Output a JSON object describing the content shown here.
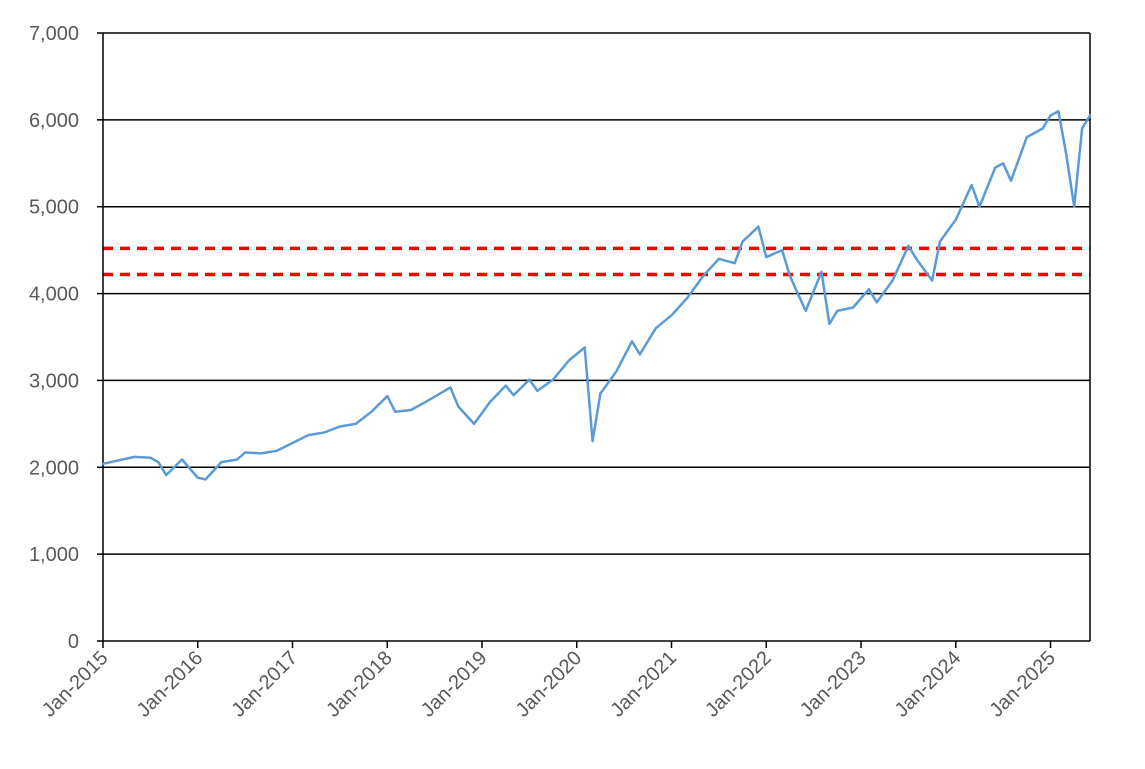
{
  "chart_data": {
    "type": "line",
    "title": "",
    "xlabel": "",
    "ylabel": "",
    "xlim": [
      "2015-01",
      "2025-06"
    ],
    "ylim": [
      0,
      7000
    ],
    "grid": "horizontal",
    "legend": "none",
    "y_ticks": [
      {
        "value": 0,
        "label": "0"
      },
      {
        "value": 1000,
        "label": "1,000"
      },
      {
        "value": 2000,
        "label": "2,000"
      },
      {
        "value": 3000,
        "label": "3,000"
      },
      {
        "value": 4000,
        "label": "4,000"
      },
      {
        "value": 5000,
        "label": "5,000"
      },
      {
        "value": 6000,
        "label": "6,000"
      },
      {
        "value": 7000,
        "label": "7,000"
      }
    ],
    "x_ticks": [
      {
        "value": "2015-01",
        "label": "Jan-2015"
      },
      {
        "value": "2016-01",
        "label": "Jan-2016"
      },
      {
        "value": "2017-01",
        "label": "Jan-2017"
      },
      {
        "value": "2018-01",
        "label": "Jan-2018"
      },
      {
        "value": "2019-01",
        "label": "Jan-2019"
      },
      {
        "value": "2020-01",
        "label": "Jan-2020"
      },
      {
        "value": "2021-01",
        "label": "Jan-2021"
      },
      {
        "value": "2022-01",
        "label": "Jan-2022"
      },
      {
        "value": "2023-01",
        "label": "Jan-2023"
      },
      {
        "value": "2024-01",
        "label": "Jan-2024"
      },
      {
        "value": "2025-01",
        "label": "Jan-2025"
      }
    ],
    "reference_lines": [
      {
        "y": 4520,
        "color": "#ff0000",
        "style": "dashed"
      },
      {
        "y": 4220,
        "color": "#ff0000",
        "style": "dashed"
      }
    ],
    "series": [
      {
        "color": "#5b9bd5",
        "x": [
          "2015-01",
          "2015-03",
          "2015-05",
          "2015-07",
          "2015-08",
          "2015-09",
          "2015-11",
          "2016-01",
          "2016-02",
          "2016-04",
          "2016-06",
          "2016-07",
          "2016-09",
          "2016-11",
          "2017-01",
          "2017-03",
          "2017-05",
          "2017-07",
          "2017-09",
          "2017-11",
          "2018-01",
          "2018-02",
          "2018-04",
          "2018-06",
          "2018-09",
          "2018-10",
          "2018-12",
          "2019-02",
          "2019-04",
          "2019-05",
          "2019-07",
          "2019-08",
          "2019-10",
          "2019-12",
          "2020-02",
          "2020-03",
          "2020-04",
          "2020-06",
          "2020-08",
          "2020-09",
          "2020-11",
          "2021-01",
          "2021-03",
          "2021-05",
          "2021-07",
          "2021-09",
          "2021-10",
          "2021-12",
          "2022-01",
          "2022-03",
          "2022-04",
          "2022-06",
          "2022-08",
          "2022-09",
          "2022-10",
          "2022-12",
          "2023-02",
          "2023-03",
          "2023-05",
          "2023-07",
          "2023-08",
          "2023-10",
          "2023-11",
          "2024-01",
          "2024-03",
          "2024-04",
          "2024-06",
          "2024-07",
          "2024-08",
          "2024-10",
          "2024-12",
          "2025-01",
          "2025-02",
          "2025-03",
          "2025-04",
          "2025-05",
          "2025-06"
        ],
        "y": [
          2040,
          2080,
          2120,
          2110,
          2060,
          1910,
          2090,
          1880,
          1860,
          2060,
          2090,
          2170,
          2160,
          2190,
          2280,
          2370,
          2400,
          2470,
          2500,
          2640,
          2820,
          2640,
          2660,
          2760,
          2920,
          2700,
          2500,
          2750,
          2940,
          2830,
          3010,
          2880,
          3010,
          3230,
          3380,
          2300,
          2850,
          3100,
          3450,
          3300,
          3600,
          3750,
          3950,
          4200,
          4400,
          4350,
          4600,
          4770,
          4420,
          4500,
          4200,
          3800,
          4250,
          3650,
          3800,
          3840,
          4050,
          3900,
          4150,
          4550,
          4400,
          4150,
          4600,
          4850,
          5250,
          5000,
          5450,
          5500,
          5300,
          5800,
          5900,
          6050,
          6100,
          5600,
          5000,
          5900,
          6050
        ]
      }
    ]
  }
}
